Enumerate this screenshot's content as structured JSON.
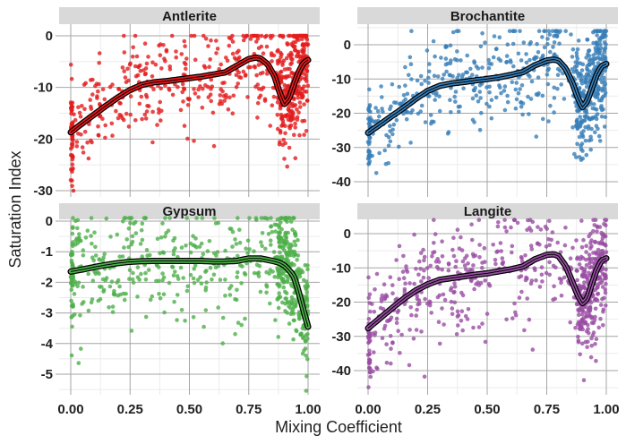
{
  "chart_data": {
    "type": "scatter",
    "layout": "facet-grid-2x2",
    "xlabel": "Mixing Coefficient",
    "ylabel": "Saturation Index",
    "xlim": [
      0,
      1
    ],
    "x_ticks": [
      "0.00",
      "0.25",
      "0.50",
      "0.75",
      "1.00"
    ],
    "x_tick_values": [
      0,
      0.25,
      0.5,
      0.75,
      1.0
    ],
    "grid": true,
    "smooth_line_color": "#000000",
    "panels": [
      {
        "title": "Antlerite",
        "color": "#E41A1C",
        "ylim": [
          -30,
          0
        ],
        "y_ticks": [
          "0",
          "-10",
          "-20",
          "-30"
        ],
        "y_tick_values": [
          0,
          -10,
          -20,
          -30
        ],
        "smooth": {
          "x": [
            0.0,
            0.05,
            0.1,
            0.15,
            0.2,
            0.25,
            0.3,
            0.35,
            0.4,
            0.45,
            0.5,
            0.55,
            0.6,
            0.65,
            0.7,
            0.75,
            0.78,
            0.8,
            0.83,
            0.86,
            0.88,
            0.9,
            0.92,
            0.94,
            0.96,
            0.98,
            1.0
          ],
          "y": [
            -18.7,
            -16.9,
            -15.2,
            -13.5,
            -11.9,
            -10.5,
            -9.5,
            -9.0,
            -8.8,
            -8.5,
            -8.2,
            -7.9,
            -7.5,
            -7.1,
            -5.8,
            -4.5,
            -4.2,
            -4.4,
            -5.5,
            -8.0,
            -11.0,
            -13.2,
            -12.2,
            -9.5,
            -7.0,
            -5.3,
            -4.7
          ]
        }
      },
      {
        "title": "Brochantite",
        "color": "#377EB8",
        "ylim": [
          -42,
          4
        ],
        "y_ticks": [
          "0",
          "-10",
          "-20",
          "-30",
          "-40"
        ],
        "y_tick_values": [
          0,
          -10,
          -20,
          -30,
          -40
        ],
        "smooth": {
          "x": [
            0.0,
            0.05,
            0.1,
            0.15,
            0.2,
            0.25,
            0.3,
            0.35,
            0.4,
            0.45,
            0.5,
            0.55,
            0.6,
            0.65,
            0.7,
            0.75,
            0.78,
            0.8,
            0.83,
            0.86,
            0.88,
            0.9,
            0.92,
            0.94,
            0.96,
            0.98,
            1.0
          ],
          "y": [
            -25.7,
            -23.3,
            -20.8,
            -18.4,
            -15.8,
            -13.5,
            -12.0,
            -11.3,
            -10.9,
            -10.4,
            -10.0,
            -9.5,
            -8.8,
            -8.0,
            -6.0,
            -4.6,
            -4.3,
            -4.7,
            -7.0,
            -11.5,
            -15.5,
            -18.2,
            -16.5,
            -12.5,
            -8.7,
            -6.2,
            -5.6
          ]
        }
      },
      {
        "title": "Gypsum",
        "color": "#4DAF4A",
        "ylim": [
          -5.6,
          0.1
        ],
        "y_ticks": [
          "0",
          "-1",
          "-2",
          "-3",
          "-4",
          "-5"
        ],
        "y_tick_values": [
          0,
          -1,
          -2,
          -3,
          -4,
          -5
        ],
        "smooth": {
          "x": [
            0.0,
            0.05,
            0.1,
            0.15,
            0.2,
            0.25,
            0.3,
            0.35,
            0.4,
            0.45,
            0.5,
            0.55,
            0.6,
            0.65,
            0.7,
            0.75,
            0.8,
            0.85,
            0.88,
            0.9,
            0.92,
            0.94,
            0.96,
            0.98,
            1.0
          ],
          "y": [
            -1.65,
            -1.58,
            -1.5,
            -1.43,
            -1.37,
            -1.33,
            -1.31,
            -1.3,
            -1.3,
            -1.3,
            -1.3,
            -1.3,
            -1.32,
            -1.32,
            -1.3,
            -1.22,
            -1.22,
            -1.3,
            -1.36,
            -1.45,
            -1.6,
            -1.8,
            -2.3,
            -2.9,
            -3.45
          ]
        }
      },
      {
        "title": "Langite",
        "color": "#984EA3",
        "ylim": [
          -45,
          4
        ],
        "y_ticks": [
          "0",
          "-10",
          "-20",
          "-30",
          "-40"
        ],
        "y_tick_values": [
          0,
          -10,
          -20,
          -30,
          -40
        ],
        "smooth": {
          "x": [
            0.0,
            0.05,
            0.1,
            0.15,
            0.2,
            0.25,
            0.3,
            0.35,
            0.4,
            0.45,
            0.5,
            0.55,
            0.6,
            0.65,
            0.7,
            0.75,
            0.78,
            0.8,
            0.83,
            0.86,
            0.88,
            0.9,
            0.92,
            0.94,
            0.96,
            0.98,
            1.0
          ],
          "y": [
            -27.6,
            -24.7,
            -21.8,
            -19.0,
            -16.6,
            -14.8,
            -13.5,
            -13.0,
            -12.5,
            -12.0,
            -11.6,
            -11.0,
            -10.4,
            -9.6,
            -7.5,
            -6.2,
            -6.0,
            -6.6,
            -9.5,
            -14.5,
            -18.0,
            -20.3,
            -19.0,
            -14.5,
            -10.5,
            -7.8,
            -7.2
          ]
        }
      }
    ]
  }
}
